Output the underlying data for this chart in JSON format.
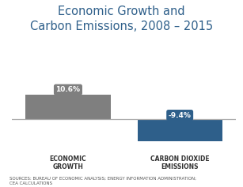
{
  "title": "Economic Growth and\nCarbon Emissions, 2008 – 2015",
  "title_color": "#2e5f8a",
  "title_fontsize": 10.5,
  "categories": [
    "ECONOMIC\nGROWTH",
    "CARBON DIOXIDE\nEMISSIONS"
  ],
  "values": [
    10.6,
    -9.4
  ],
  "bar_colors": [
    "#7f7f7f",
    "#2e5f8a"
  ],
  "label_colors": [
    "#7f7f7f",
    "#2e5f8a"
  ],
  "label_texts": [
    "10.6%",
    "-9.4%"
  ],
  "xlabel_fontsize": 5.5,
  "source_text": "SOURCES: BUREAU OF ECONOMIC ANALYSIS; ENERGY INFORMATION ADMINISTRATION;\nCEA CALCULATIONS",
  "source_fontsize": 4.0,
  "background_color": "#ffffff",
  "ylim": [
    -13,
    16
  ],
  "bar_width": 0.38
}
